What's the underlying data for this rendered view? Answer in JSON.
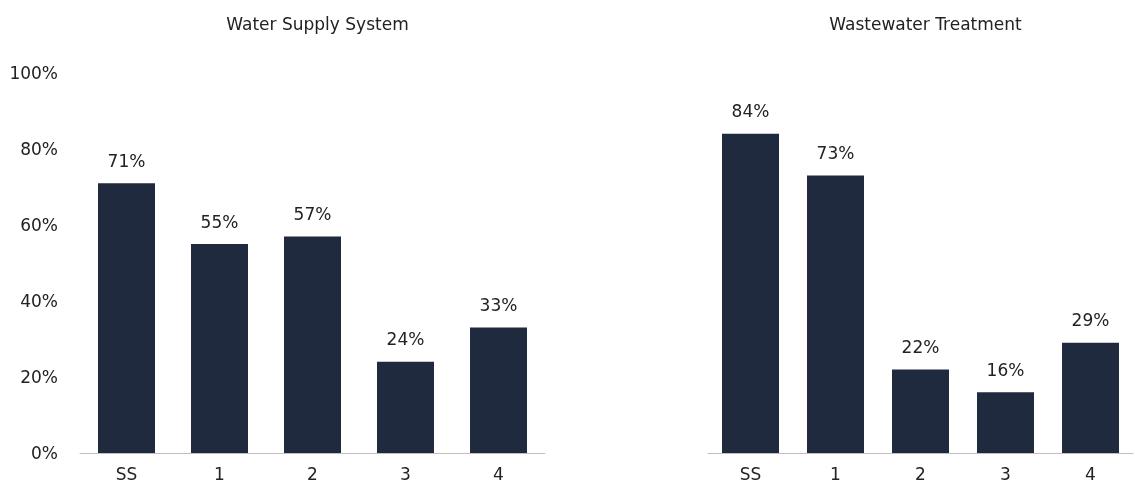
{
  "chart_data": [
    {
      "type": "bar",
      "title": "Water Supply System",
      "categories": [
        "SS",
        "1",
        "2",
        "3",
        "4"
      ],
      "values": [
        71,
        55,
        57,
        24,
        33
      ],
      "color": "#1f2a3f",
      "value_labels": [
        "71%",
        "55%",
        "57%",
        "24%",
        "33%"
      ],
      "ylim": [
        0,
        100
      ],
      "yticks": [
        {
          "value": 0,
          "label": "0%"
        },
        {
          "value": 20,
          "label": "20%"
        },
        {
          "value": 40,
          "label": "40%"
        },
        {
          "value": 60,
          "label": "60%"
        },
        {
          "value": 80,
          "label": "80%"
        },
        {
          "value": 100,
          "label": "100%"
        }
      ],
      "grid": false
    },
    {
      "type": "bar",
      "title": "Wastewater Treatment",
      "categories": [
        "SS",
        "1",
        "2",
        "3",
        "4"
      ],
      "values": [
        84,
        73,
        22,
        16,
        29
      ],
      "color": "#1f2a3f",
      "value_labels": [
        "84%",
        "73%",
        "22%",
        "16%",
        "29%"
      ],
      "ylim": [
        0,
        100
      ],
      "grid": false,
      "tick_labels": "x"
    }
  ]
}
